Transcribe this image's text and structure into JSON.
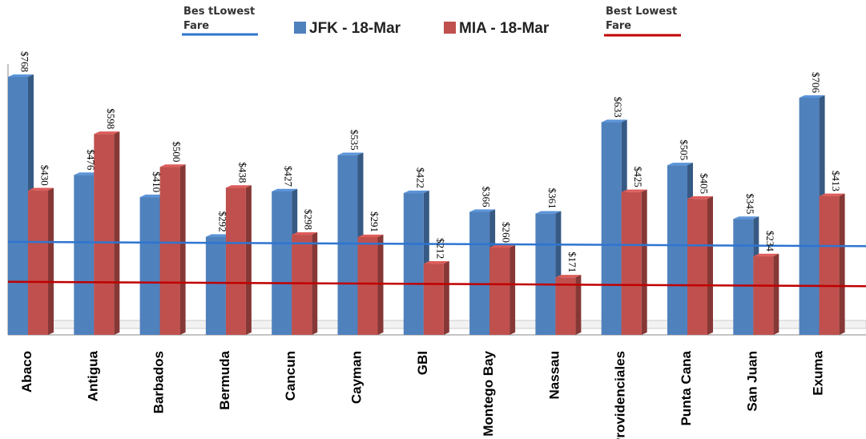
{
  "chart_data": {
    "type": "bar",
    "title": "",
    "xlabel": "",
    "ylabel": "",
    "ylim": [
      0,
      800
    ],
    "grid": false,
    "legend_position": "top",
    "categories": [
      "Abaco",
      "Antigua",
      "Barbados",
      "Bermuda",
      "Cancun",
      "Cayman",
      "GBI",
      "Montego Bay",
      "Nassau",
      "Providenciales",
      "Punta Cana",
      "San Juan",
      "Exuma"
    ],
    "series": [
      {
        "name": "JFK - 18-Mar",
        "color": "#4f81bd",
        "values": [
          768,
          476,
          410,
          292,
          427,
          535,
          422,
          366,
          361,
          633,
          505,
          345,
          706
        ],
        "labels": [
          "$768",
          "$476",
          "$410",
          "$292",
          "$427",
          "$535",
          "$422",
          "$366",
          "$361",
          "$633",
          "$505",
          "$345",
          "$706"
        ]
      },
      {
        "name": "MIA - 18-Mar",
        "color": "#c0504d",
        "values": [
          430,
          598,
          500,
          438,
          298,
          291,
          212,
          260,
          171,
          425,
          405,
          234,
          413
        ],
        "labels": [
          "$430",
          "$598",
          "$500",
          "$438",
          "$298",
          "$291",
          "$212",
          "$260",
          "$171",
          "$425",
          "$405",
          "$234",
          "$413"
        ]
      }
    ],
    "reference_lines": [
      {
        "name": "Bes tLowest Fare",
        "color": "#2e75d0",
        "y_start": 277,
        "y_end": 264
      },
      {
        "name": "Best Lowest Fare",
        "color": "#c00000",
        "y_start": 158,
        "y_end": 145
      }
    ]
  },
  "legend": {
    "left_line_text_1": "Bes tLowest",
    "left_line_text_2": "Fare",
    "series_1": "JFK - 18-Mar",
    "series_2": "MIA - 18-Mar",
    "right_line_text_1": "Best Lowest",
    "right_line_text_2": "Fare"
  }
}
